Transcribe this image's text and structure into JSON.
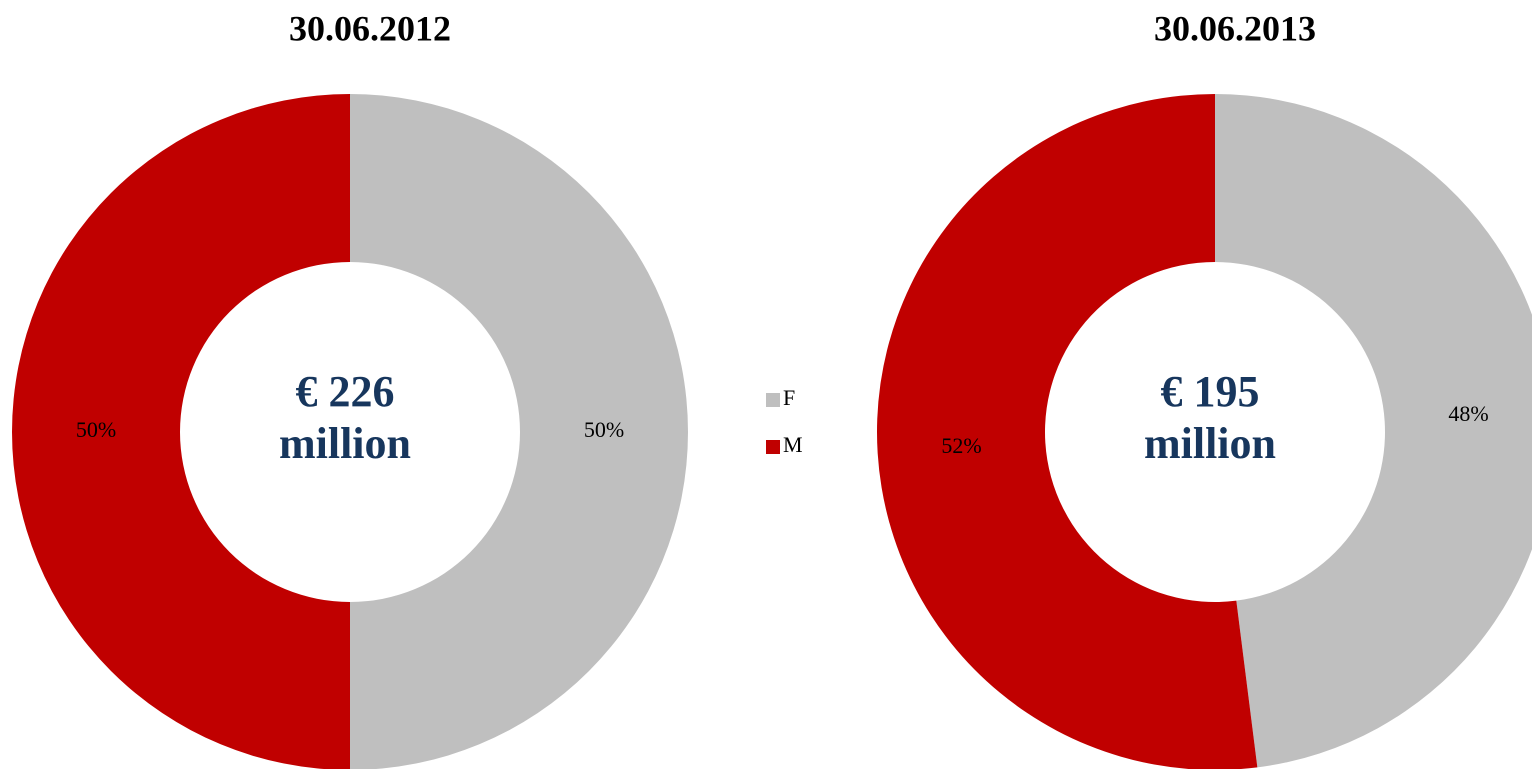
{
  "chart_data": [
    {
      "type": "donut",
      "title": "30.06.2012",
      "center_text": [
        "€ 226",
        "million"
      ],
      "categories": [
        "F",
        "M"
      ],
      "values": [
        50,
        50
      ],
      "value_labels": [
        "50%",
        "50%"
      ],
      "colors": [
        "#bfbfbf",
        "#c00000"
      ]
    },
    {
      "type": "donut",
      "title": "30.06.2013",
      "center_text": [
        "€ 195",
        "million"
      ],
      "categories": [
        "F",
        "M"
      ],
      "values": [
        48,
        52
      ],
      "value_labels": [
        "48%",
        "52%"
      ],
      "colors": [
        "#bfbfbf",
        "#c00000"
      ]
    }
  ]
}
